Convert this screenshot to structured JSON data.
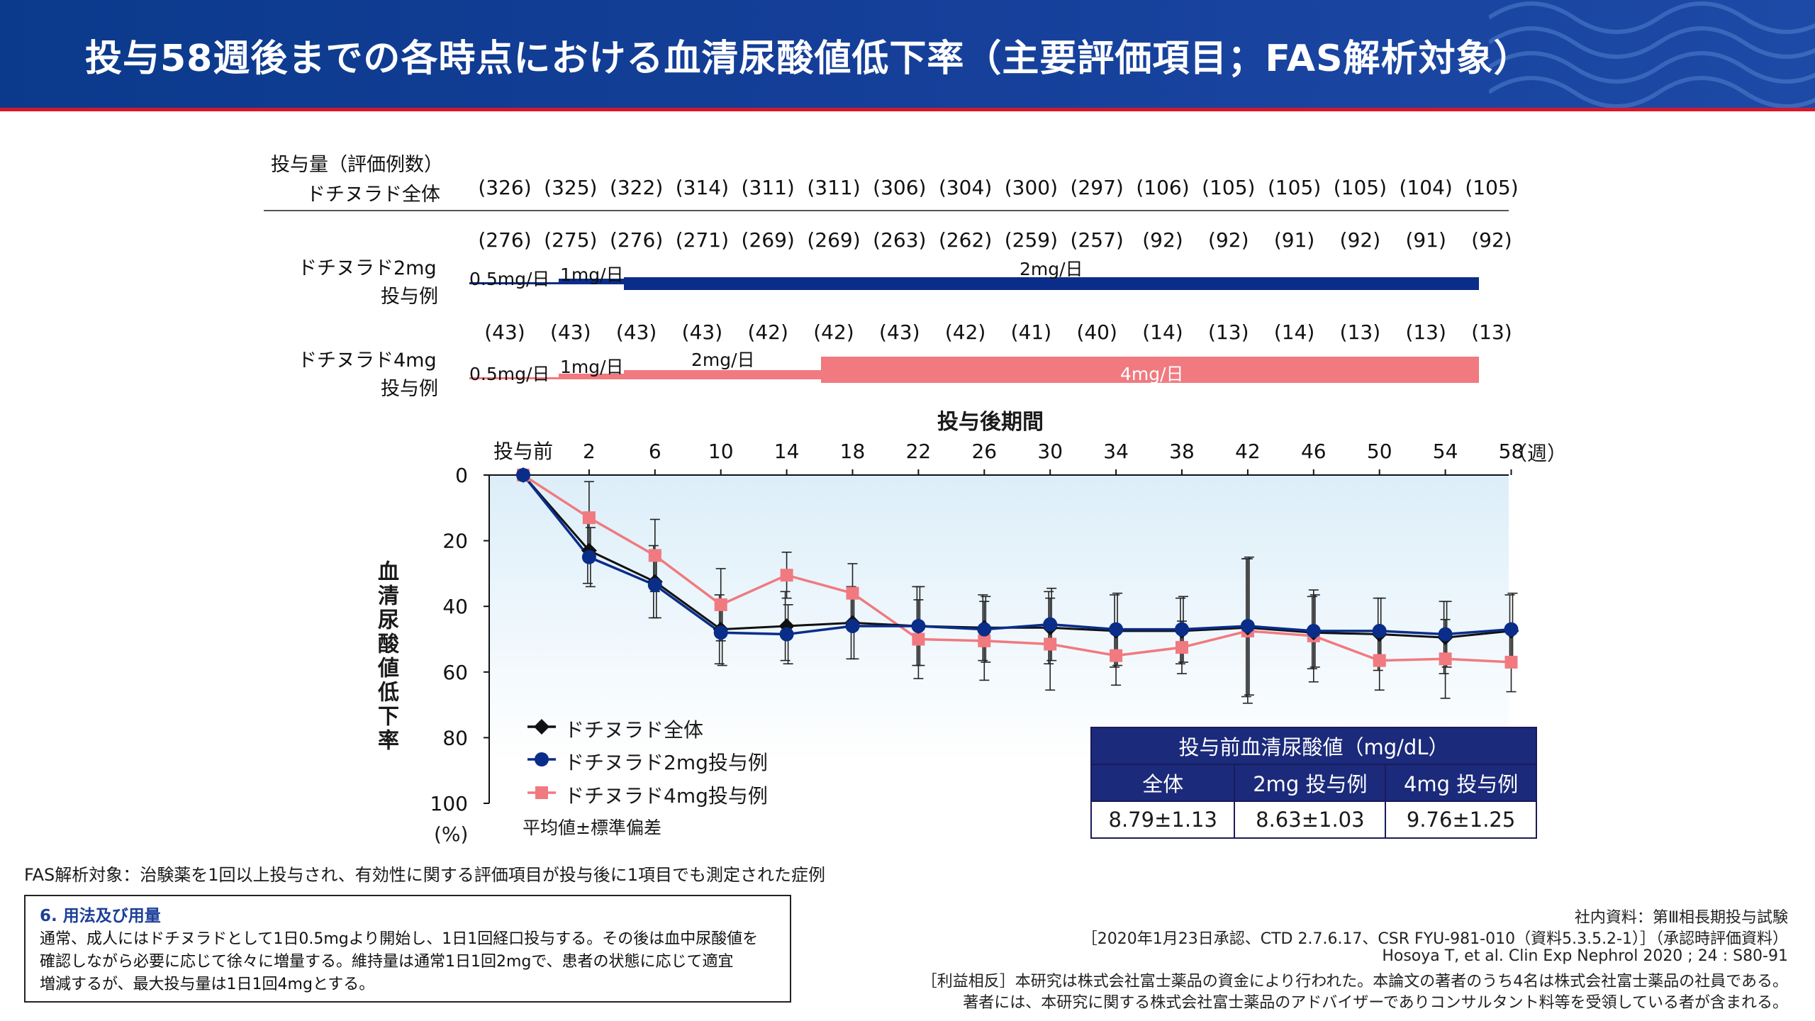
{
  "title": "投与58週後までの各時点における血清尿酸値低下率（主要評価項目；FAS解析対象）",
  "colors": {
    "header": "#0b3a8c",
    "accent_red": "#d6182a",
    "navy": "#0a2d8a",
    "pink": "#f07a80",
    "black": "#111111"
  },
  "n_table": {
    "header_line1": "投与量（評価例数）",
    "header_line2": "ドチヌラド全体",
    "all": [
      "(326)",
      "(325)",
      "(322)",
      "(314)",
      "(311)",
      "(311)",
      "(306)",
      "(304)",
      "(300)",
      "(297)",
      "(106)",
      "(105)",
      "(105)",
      "(105)",
      "(104)",
      "(105)"
    ],
    "dose2_label1": "ドチヌラド2mg",
    "dose2_label2": "投与例",
    "dose2": [
      "(276)",
      "(275)",
      "(276)",
      "(271)",
      "(269)",
      "(269)",
      "(263)",
      "(262)",
      "(259)",
      "(257)",
      "(92)",
      "(92)",
      "(91)",
      "(92)",
      "(91)",
      "(92)"
    ],
    "dose2_bars": [
      "0.5mg/日",
      "1mg/日",
      "2mg/日"
    ],
    "dose4_label1": "ドチヌラド4mg",
    "dose4_label2": "投与例",
    "dose4": [
      "(43)",
      "(43)",
      "(43)",
      "(43)",
      "(42)",
      "(42)",
      "(43)",
      "(42)",
      "(41)",
      "(40)",
      "(14)",
      "(13)",
      "(14)",
      "(13)",
      "(13)",
      "(13)"
    ],
    "dose4_bars": [
      "0.5mg/日",
      "1mg/日",
      "2mg/日",
      "4mg/日"
    ]
  },
  "chart_data": {
    "type": "line",
    "xlabel": "投与後期間",
    "x_unit": "（週）",
    "ylabel": "血清尿酸値低下率",
    "y_unit": "(%)",
    "ylim": [
      0,
      100
    ],
    "y_inverted": true,
    "yticks": [
      "0",
      "20",
      "40",
      "60",
      "80",
      "100"
    ],
    "categories": [
      "投与前",
      "2",
      "6",
      "10",
      "14",
      "18",
      "22",
      "26",
      "30",
      "34",
      "38",
      "42",
      "46",
      "50",
      "54",
      "58"
    ],
    "series": [
      {
        "name": "ドチヌラド全体",
        "color": "#111111",
        "marker": "diamond",
        "values": [
          0,
          23,
          32.5,
          47,
          46,
          45,
          46,
          46.5,
          46.5,
          47.5,
          47.5,
          46.5,
          48,
          48.5,
          49.5,
          47.5
        ],
        "sd": [
          0,
          10,
          11,
          10.5,
          10.5,
          11,
          12,
          10,
          11,
          11,
          10,
          21,
          11,
          11,
          11,
          11
        ]
      },
      {
        "name": "ドチヌラド2mg投与例",
        "color": "#0a2d8a",
        "marker": "circle",
        "values": [
          0,
          25,
          33.5,
          48,
          48.5,
          46,
          46,
          47,
          45.5,
          47,
          47,
          46,
          47.5,
          47.5,
          48.5,
          47
        ],
        "sd": [
          0,
          9,
          10,
          10,
          9,
          10,
          12,
          10,
          11,
          11,
          10,
          21,
          11,
          10,
          10,
          11
        ]
      },
      {
        "name": "ドチヌラド4mg投与例",
        "color": "#f07a80",
        "marker": "square",
        "values": [
          0,
          13,
          24.5,
          39.5,
          30.5,
          36,
          50,
          50.5,
          51.5,
          55,
          52.5,
          47.5,
          49,
          56.5,
          56,
          57
        ],
        "sd": [
          0,
          11,
          11,
          11,
          7,
          9,
          12,
          12,
          14,
          9,
          8,
          22,
          14,
          9,
          12,
          9
        ]
      }
    ],
    "legend_note": "平均値±標準偏差",
    "legend_position": "bottom-left"
  },
  "baseline_table": {
    "title": "投与前血清尿酸値（mg/dL）",
    "headers": [
      "全体",
      "2mg 投与例",
      "4mg 投与例"
    ],
    "values": [
      "8.79±1.13",
      "8.63±1.03",
      "9.76±1.25"
    ]
  },
  "fas_note": "FAS解析対象：治験薬を1回以上投与され、有効性に関する評価項目が投与後に1項目でも測定された症例",
  "dosage": {
    "title": "6. 用法及び用量",
    "lines": [
      "通常、成人にはドチヌラドとして1日0.5mgより開始し、1日1回経口投与する。その後は血中尿酸値を",
      "確認しながら必要に応じて徐々に増量する。維持量は通常1日1回2mgで、患者の状態に応じて適宜",
      "増減するが、最大投与量は1日1回4mgとする。"
    ]
  },
  "references": [
    "社内資料：第Ⅲ相長期投与試験",
    "［2020年1月23日承認、CTD 2.7.6.17、CSR FYU-981-010（資料5.3.5.2-1）］（承認時評価資料）",
    "Hosoya T, et al. Clin Exp Nephrol 2020 ; 24 : S80-91",
    "［利益相反］本研究は株式会社富士薬品の資金により行われた。本論文の著者のうち4名は株式会社富士薬品の社員である。",
    "著者には、本研究に関する株式会社富士薬品のアドバイザーでありコンサルタント料等を受領している者が含まれる。"
  ]
}
